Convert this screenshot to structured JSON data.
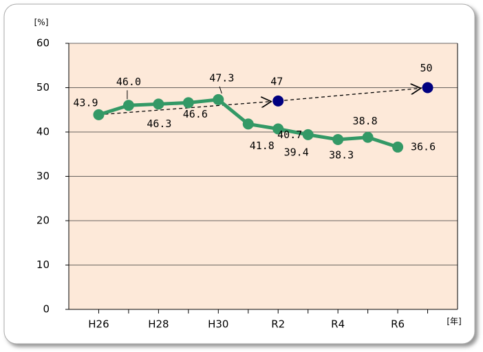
{
  "chart_data": {
    "type": "line",
    "y_label": "[%]",
    "x_label": "[年]",
    "categories": [
      "H26",
      null,
      "H28",
      null,
      "H30",
      null,
      "R2",
      null,
      "R4",
      null,
      "R6",
      null
    ],
    "series": [
      {
        "color": "#339966",
        "values": [
          43.9,
          46.0,
          46.3,
          46.6,
          47.3,
          41.8,
          40.7,
          39.4,
          38.3,
          38.8,
          36.6,
          null
        ],
        "value_labels": [
          "43.9",
          "46.0",
          "46.3",
          "46.6",
          "47.3",
          "41.8",
          "40.7",
          "39.4",
          "38.3",
          "38.8",
          "36.6",
          null
        ]
      },
      {
        "color": "#000080",
        "values": [
          null,
          null,
          null,
          null,
          null,
          null,
          47,
          null,
          null,
          null,
          null,
          50
        ]
      }
    ],
    "ylim": [
      0,
      60
    ],
    "yticks": [
      0,
      10,
      20,
      30,
      40,
      50,
      60
    ],
    "grid": true,
    "plot_background": "#fde9d9"
  }
}
